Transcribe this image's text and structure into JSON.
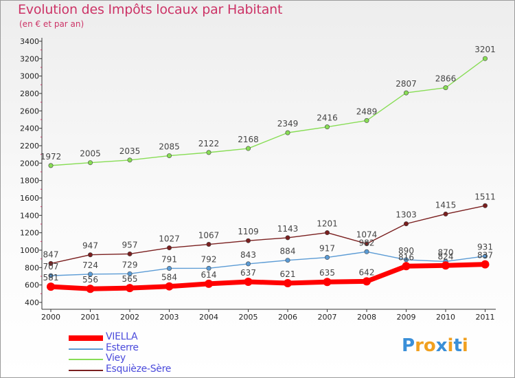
{
  "title": "Evolution des Impôts locaux par Habitant",
  "subtitle": "(en € et par an)",
  "logo": {
    "text": "Proxiti",
    "letter_colors": [
      "#3a8fd8",
      "#f0a020",
      "#f0a020",
      "#3a8fd8",
      "#f0a020",
      "#3a8fd8",
      "#f0a020"
    ]
  },
  "chart_data": {
    "type": "line",
    "x": [
      "2000",
      "2001",
      "2002",
      "2003",
      "2004",
      "2005",
      "2006",
      "2007",
      "2008",
      "2009",
      "2010",
      "2011"
    ],
    "ylim": [
      400,
      3400
    ],
    "yticks": [
      "400",
      "600",
      "800",
      "1000",
      "1200",
      "1400",
      "1600",
      "1800",
      "2000",
      "2200",
      "2400",
      "2600",
      "2800",
      "3000",
      "3200",
      "3400"
    ],
    "grid": false,
    "legend_position": "bottom-left",
    "series": [
      {
        "name": "VIELLA",
        "color": "#ff0000",
        "values": [
          581,
          556,
          565,
          584,
          614,
          637,
          621,
          635,
          642,
          816,
          824,
          837
        ],
        "labels": [
          "581",
          "556",
          "565",
          "584",
          "614",
          "637",
          "621",
          "635",
          "642",
          "816",
          "824",
          "837"
        ]
      },
      {
        "name": "Esterre",
        "color": "#5b9bd5",
        "values": [
          707,
          724,
          729,
          791,
          792,
          843,
          884,
          917,
          982,
          890,
          870,
          931
        ],
        "labels": [
          "707",
          "724",
          "729",
          "791",
          "792",
          "843",
          "884",
          "917",
          "982",
          "890",
          "870",
          "931"
        ]
      },
      {
        "name": "Viey",
        "color": "#88dd55",
        "values": [
          1972,
          2005,
          2035,
          2085,
          2122,
          2168,
          2349,
          2416,
          2489,
          2807,
          2866,
          3201
        ],
        "labels": [
          "1972",
          "2005",
          "2035",
          "2085",
          "2122",
          "2168",
          "2349",
          "2416",
          "2489",
          "2807",
          "2866",
          "3201"
        ]
      },
      {
        "name": "Esquièze-Sère",
        "color": "#7a1f1f",
        "values": [
          847,
          947,
          957,
          1027,
          1067,
          1109,
          1143,
          1201,
          1074,
          1303,
          1415,
          1511
        ],
        "labels": [
          "847",
          "947",
          "957",
          "1027",
          "1067",
          "1109",
          "1143",
          "1201",
          "1074",
          "1303",
          "1415",
          "1511"
        ]
      }
    ]
  }
}
